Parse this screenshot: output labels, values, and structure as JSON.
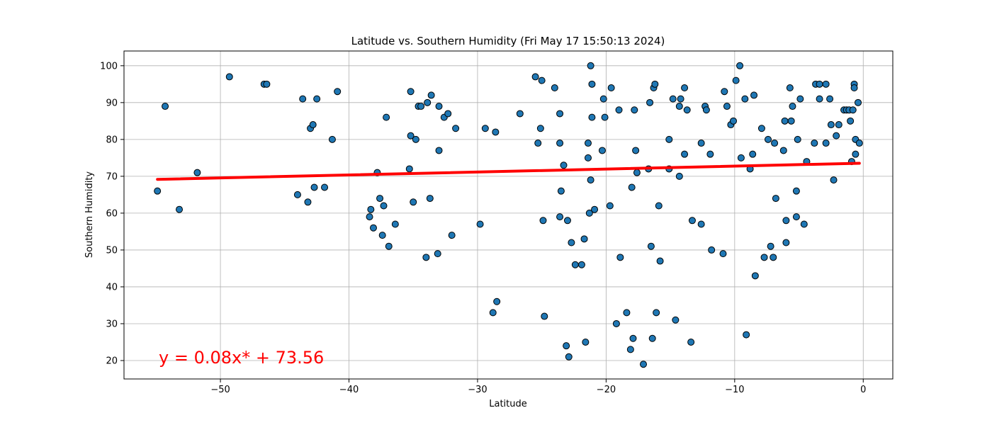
{
  "chart_data": {
    "type": "scatter",
    "title": "Latitude vs. Southern Humidity (Fri May 17 15:50:13 2024)",
    "xlabel": "Latitude",
    "ylabel": "Southern Humidity",
    "xlim": [
      -57.5,
      2.3
    ],
    "ylim": [
      15,
      104
    ],
    "xticks": [
      -50,
      -40,
      -30,
      -20,
      -10,
      0
    ],
    "yticks": [
      20,
      30,
      40,
      50,
      60,
      70,
      80,
      90,
      100
    ],
    "grid": true,
    "marker_color": "#1f77b4",
    "marker_edge_color": "#000000",
    "line_color": "#ff0000",
    "regression": {
      "slope": 0.08,
      "intercept": 73.56,
      "x_range": [
        -54.9,
        -0.3
      ],
      "equation": "y = 0.08x* + 73.56"
    },
    "points": [
      [
        -54.9,
        66
      ],
      [
        -54.3,
        89
      ],
      [
        -53.2,
        61
      ],
      [
        -51.8,
        71
      ],
      [
        -49.3,
        97
      ],
      [
        -46.6,
        95
      ],
      [
        -46.4,
        95
      ],
      [
        -44.0,
        65
      ],
      [
        -43.6,
        91
      ],
      [
        -43.2,
        63
      ],
      [
        -43.0,
        83
      ],
      [
        -42.8,
        84
      ],
      [
        -42.7,
        67
      ],
      [
        -42.5,
        91
      ],
      [
        -41.9,
        67
      ],
      [
        -41.3,
        80
      ],
      [
        -40.9,
        93
      ],
      [
        -38.4,
        59
      ],
      [
        -38.3,
        61
      ],
      [
        -38.1,
        56
      ],
      [
        -37.8,
        71
      ],
      [
        -37.6,
        64
      ],
      [
        -37.4,
        54
      ],
      [
        -37.3,
        62
      ],
      [
        -37.1,
        86
      ],
      [
        -36.9,
        51
      ],
      [
        -36.4,
        57
      ],
      [
        -35.3,
        72
      ],
      [
        -35.2,
        81
      ],
      [
        -35.2,
        93
      ],
      [
        -35.0,
        63
      ],
      [
        -34.8,
        80
      ],
      [
        -34.6,
        89
      ],
      [
        -34.4,
        89
      ],
      [
        -34.0,
        48
      ],
      [
        -33.9,
        90
      ],
      [
        -33.7,
        64
      ],
      [
        -33.6,
        92
      ],
      [
        -33.1,
        49
      ],
      [
        -33.0,
        89
      ],
      [
        -33.0,
        77
      ],
      [
        -32.6,
        86
      ],
      [
        -32.3,
        87
      ],
      [
        -32.0,
        54
      ],
      [
        -31.7,
        83
      ],
      [
        -29.8,
        57
      ],
      [
        -29.4,
        83
      ],
      [
        -28.8,
        33
      ],
      [
        -28.6,
        82
      ],
      [
        -28.5,
        36
      ],
      [
        -26.7,
        87
      ],
      [
        -25.5,
        97
      ],
      [
        -25.3,
        79
      ],
      [
        -25.1,
        83
      ],
      [
        -25.0,
        96
      ],
      [
        -24.9,
        58
      ],
      [
        -24.8,
        32
      ],
      [
        -24.0,
        94
      ],
      [
        -23.6,
        87
      ],
      [
        -23.6,
        79
      ],
      [
        -23.6,
        59
      ],
      [
        -23.5,
        66
      ],
      [
        -23.3,
        73
      ],
      [
        -23.1,
        24
      ],
      [
        -23.0,
        58
      ],
      [
        -22.9,
        21
      ],
      [
        -22.7,
        52
      ],
      [
        -22.4,
        46
      ],
      [
        -21.9,
        46
      ],
      [
        -21.7,
        53
      ],
      [
        -21.6,
        25
      ],
      [
        -21.4,
        79
      ],
      [
        -21.4,
        75
      ],
      [
        -21.3,
        60
      ],
      [
        -21.2,
        69
      ],
      [
        -21.2,
        100
      ],
      [
        -21.1,
        86
      ],
      [
        -21.1,
        95
      ],
      [
        -20.9,
        61
      ],
      [
        -20.3,
        77
      ],
      [
        -20.2,
        91
      ],
      [
        -20.1,
        86
      ],
      [
        -19.7,
        62
      ],
      [
        -19.6,
        94
      ],
      [
        -19.2,
        30
      ],
      [
        -19.0,
        88
      ],
      [
        -18.9,
        48
      ],
      [
        -18.4,
        33
      ],
      [
        -18.1,
        23
      ],
      [
        -18.0,
        67
      ],
      [
        -17.9,
        26
      ],
      [
        -17.8,
        88
      ],
      [
        -17.7,
        77
      ],
      [
        -17.6,
        71
      ],
      [
        -17.1,
        19
      ],
      [
        -16.7,
        72
      ],
      [
        -16.6,
        90
      ],
      [
        -16.5,
        51
      ],
      [
        -16.4,
        26
      ],
      [
        -16.3,
        94
      ],
      [
        -16.2,
        95
      ],
      [
        -16.1,
        33
      ],
      [
        -15.9,
        62
      ],
      [
        -15.8,
        47
      ],
      [
        -15.1,
        80
      ],
      [
        -15.1,
        72
      ],
      [
        -14.8,
        91
      ],
      [
        -14.6,
        31
      ],
      [
        -14.3,
        70
      ],
      [
        -14.3,
        89
      ],
      [
        -14.2,
        91
      ],
      [
        -13.9,
        76
      ],
      [
        -13.9,
        94
      ],
      [
        -13.7,
        88
      ],
      [
        -13.4,
        25
      ],
      [
        -13.3,
        58
      ],
      [
        -12.6,
        79
      ],
      [
        -12.6,
        57
      ],
      [
        -12.3,
        89
      ],
      [
        -12.2,
        88
      ],
      [
        -11.9,
        76
      ],
      [
        -11.8,
        50
      ],
      [
        -10.9,
        49
      ],
      [
        -10.8,
        93
      ],
      [
        -10.6,
        89
      ],
      [
        -10.3,
        84
      ],
      [
        -10.1,
        85
      ],
      [
        -9.9,
        96
      ],
      [
        -9.6,
        100
      ],
      [
        -9.5,
        75
      ],
      [
        -9.2,
        91
      ],
      [
        -9.1,
        27
      ],
      [
        -8.8,
        72
      ],
      [
        -8.6,
        76
      ],
      [
        -8.5,
        92
      ],
      [
        -8.4,
        43
      ],
      [
        -7.9,
        83
      ],
      [
        -7.7,
        48
      ],
      [
        -7.4,
        80
      ],
      [
        -7.2,
        51
      ],
      [
        -7.0,
        48
      ],
      [
        -6.9,
        79
      ],
      [
        -6.8,
        64
      ],
      [
        -6.2,
        77
      ],
      [
        -6.1,
        85
      ],
      [
        -6.0,
        58
      ],
      [
        -6.0,
        52
      ],
      [
        -5.7,
        94
      ],
      [
        -5.6,
        85
      ],
      [
        -5.5,
        89
      ],
      [
        -5.2,
        59
      ],
      [
        -5.2,
        66
      ],
      [
        -5.1,
        80
      ],
      [
        -4.9,
        91
      ],
      [
        -4.6,
        57
      ],
      [
        -4.4,
        74
      ],
      [
        -3.8,
        79
      ],
      [
        -3.7,
        95
      ],
      [
        -3.4,
        95
      ],
      [
        -3.4,
        91
      ],
      [
        -2.9,
        95
      ],
      [
        -2.9,
        79
      ],
      [
        -2.6,
        91
      ],
      [
        -2.5,
        84
      ],
      [
        -2.3,
        69
      ],
      [
        -2.1,
        81
      ],
      [
        -1.9,
        84
      ],
      [
        -1.5,
        88
      ],
      [
        -1.3,
        88
      ],
      [
        -1.1,
        88
      ],
      [
        -1.0,
        85
      ],
      [
        -0.9,
        74
      ],
      [
        -0.8,
        88
      ],
      [
        -0.7,
        95
      ],
      [
        -0.7,
        94
      ],
      [
        -0.6,
        80
      ],
      [
        -0.6,
        76
      ],
      [
        -0.4,
        90
      ],
      [
        -0.3,
        79
      ]
    ]
  }
}
